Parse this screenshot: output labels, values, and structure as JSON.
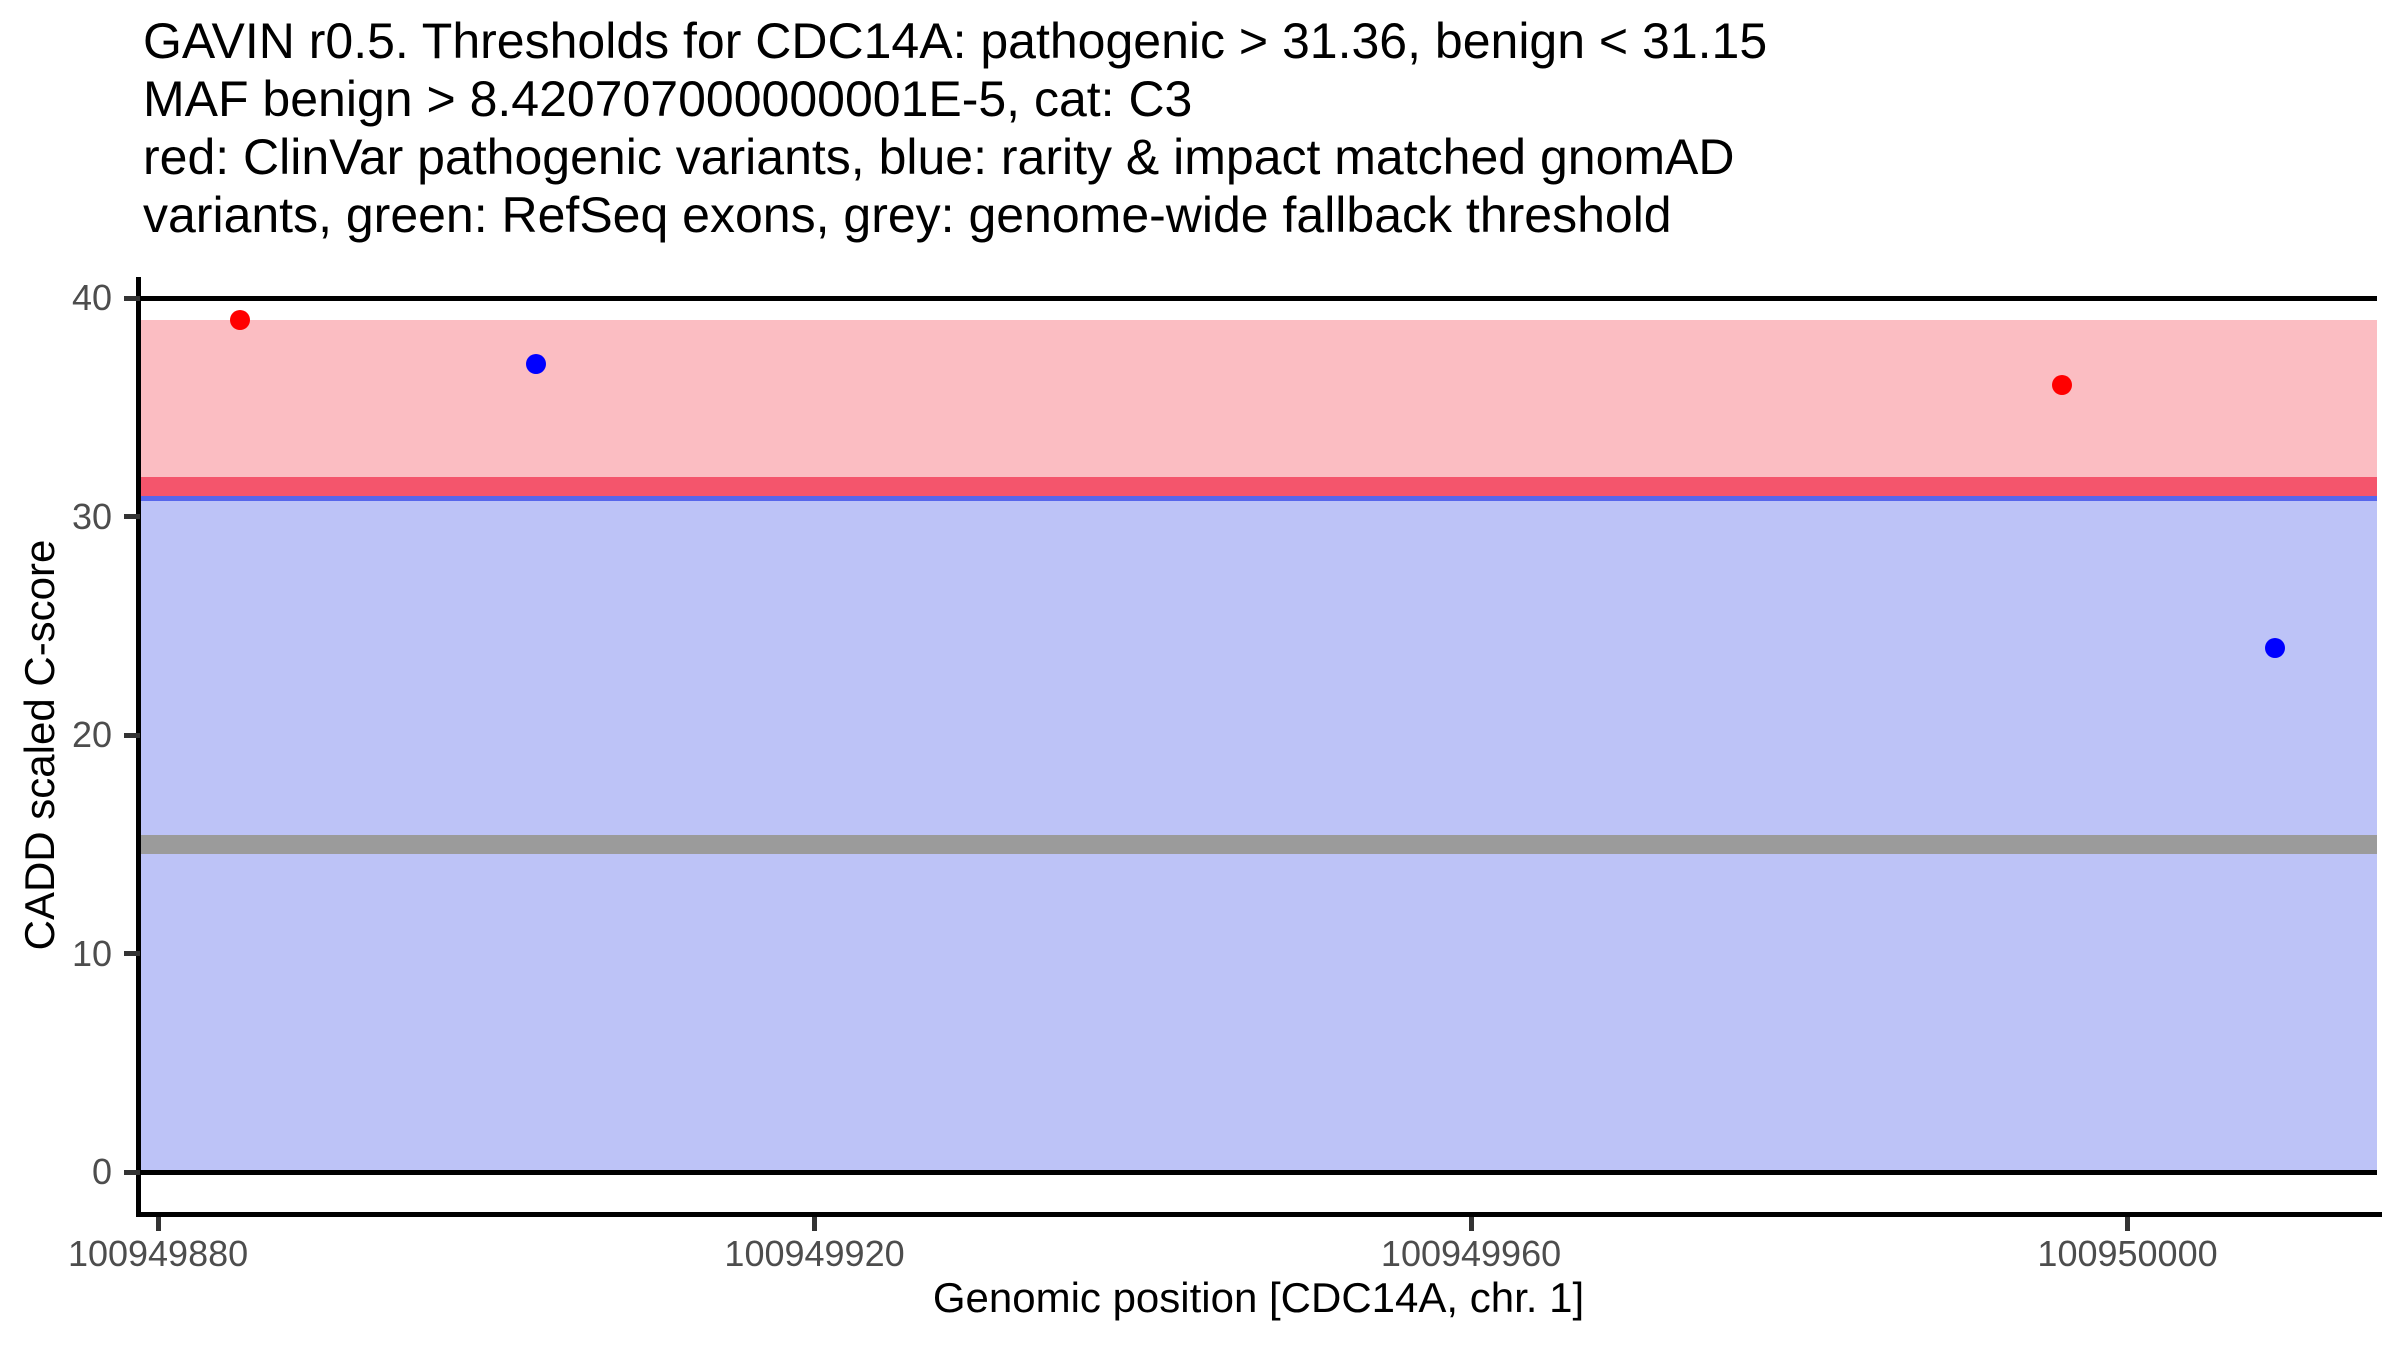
{
  "chart_data": {
    "type": "scatter",
    "title_lines": [
      "GAVIN r0.5. Thresholds for CDC14A: pathogenic > 31.36, benign < 31.15",
      "MAF benign > 8.420707000000001E-5, cat: C3",
      "red: ClinVar pathogenic variants, blue: rarity & impact matched gnomAD",
      "variants, green: RefSeq exons, grey: genome-wide fallback threshold"
    ],
    "xlabel": "Genomic position [CDC14A, chr. 1]",
    "ylabel": "CADD scaled C-score",
    "x_ticks": [
      100949880,
      100949920,
      100949960,
      100950000
    ],
    "y_ticks": [
      0,
      10,
      20,
      30,
      40
    ],
    "xlim": [
      100949878.9,
      100950015.2
    ],
    "ylim": [
      -1.83,
      40.87
    ],
    "grid": false,
    "legend": "none",
    "series": [
      {
        "name": "ClinVar pathogenic variants",
        "point_name": "clinvar-pathogenic-variant-point",
        "color": "#ff0000",
        "points": [
          [
            100949885,
            39
          ],
          [
            100949996,
            36
          ]
        ]
      },
      {
        "name": "rarity & impact matched gnomAD variants",
        "point_name": "gnomad-matched-variant-point",
        "color": "#0000ff",
        "points": [
          [
            100949903,
            37
          ],
          [
            100950009,
            24
          ]
        ]
      }
    ],
    "regions": [
      {
        "name": "pathogenic-score-region",
        "ymin": 31.36,
        "ymax": 39,
        "color": "#fbbdc2"
      },
      {
        "name": "benign-score-region",
        "ymin": 0,
        "ymax": 31.15,
        "color": "#bdc3f7"
      }
    ],
    "threshold_lines": [
      {
        "name": "genome-wide-fallback-threshold",
        "y": 15,
        "color": "#9b9b9b"
      },
      {
        "name": "benign-threshold",
        "y": 31.15,
        "color": "#5766eb"
      },
      {
        "name": "pathogenic-threshold",
        "y": 31.36,
        "color": "#f4556c"
      }
    ],
    "bound_lines": [
      {
        "y": 0
      },
      {
        "y": 40
      }
    ],
    "thresholds": {
      "gene": "CDC14A",
      "gavin_release": "r0.5",
      "pathogenic_gt": 31.36,
      "benign_lt": 31.15,
      "maf_benign_gt": "8.420707000000001E-5",
      "category": "C3",
      "fallback_threshold": 15
    }
  }
}
